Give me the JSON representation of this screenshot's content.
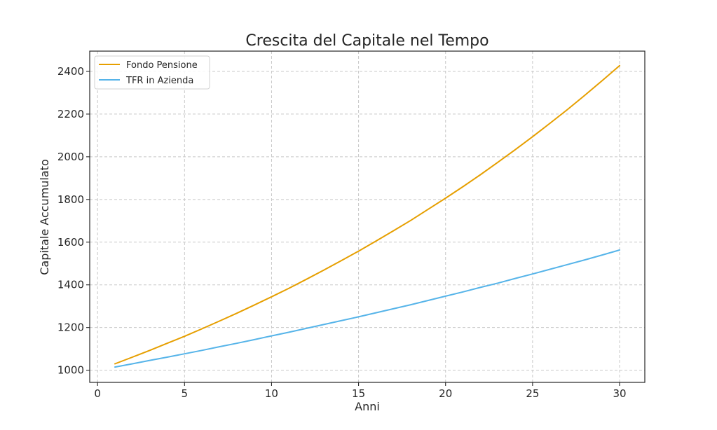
{
  "chart_data": {
    "type": "line",
    "title": "Crescita del Capitale nel Tempo",
    "xlabel": "Anni",
    "ylabel": "Capitale Accumulato",
    "xlim": [
      -0.45,
      31.45
    ],
    "ylim": [
      943,
      2495
    ],
    "xticks": [
      0,
      5,
      10,
      15,
      20,
      25,
      30
    ],
    "yticks": [
      1000,
      1200,
      1400,
      1600,
      1800,
      2000,
      2200,
      2400
    ],
    "grid": true,
    "legend_position": "top-left",
    "series": [
      {
        "name": "Fondo Pensione",
        "color": "#E69F00",
        "x": [
          1,
          2,
          3,
          4,
          5,
          6,
          7,
          8,
          9,
          10,
          11,
          12,
          13,
          14,
          15,
          16,
          17,
          18,
          19,
          20,
          21,
          22,
          23,
          24,
          25,
          26,
          27,
          28,
          29,
          30
        ],
        "y": [
          1030,
          1061,
          1093,
          1126,
          1159,
          1194,
          1230,
          1267,
          1305,
          1344,
          1384,
          1426,
          1469,
          1513,
          1558,
          1605,
          1653,
          1702,
          1754,
          1806,
          1860,
          1916,
          1974,
          2033,
          2094,
          2157,
          2221,
          2288,
          2357,
          2427
        ]
      },
      {
        "name": "TFR in Azienda",
        "color": "#56B4E9",
        "x": [
          1,
          2,
          3,
          4,
          5,
          6,
          7,
          8,
          9,
          10,
          11,
          12,
          13,
          14,
          15,
          16,
          17,
          18,
          19,
          20,
          21,
          22,
          23,
          24,
          25,
          26,
          27,
          28,
          29,
          30
        ],
        "y": [
          1015,
          1030,
          1046,
          1061,
          1077,
          1093,
          1110,
          1126,
          1143,
          1161,
          1178,
          1196,
          1214,
          1232,
          1250,
          1269,
          1288,
          1307,
          1327,
          1347,
          1367,
          1388,
          1408,
          1430,
          1451,
          1473,
          1495,
          1517,
          1540,
          1563
        ]
      }
    ]
  }
}
